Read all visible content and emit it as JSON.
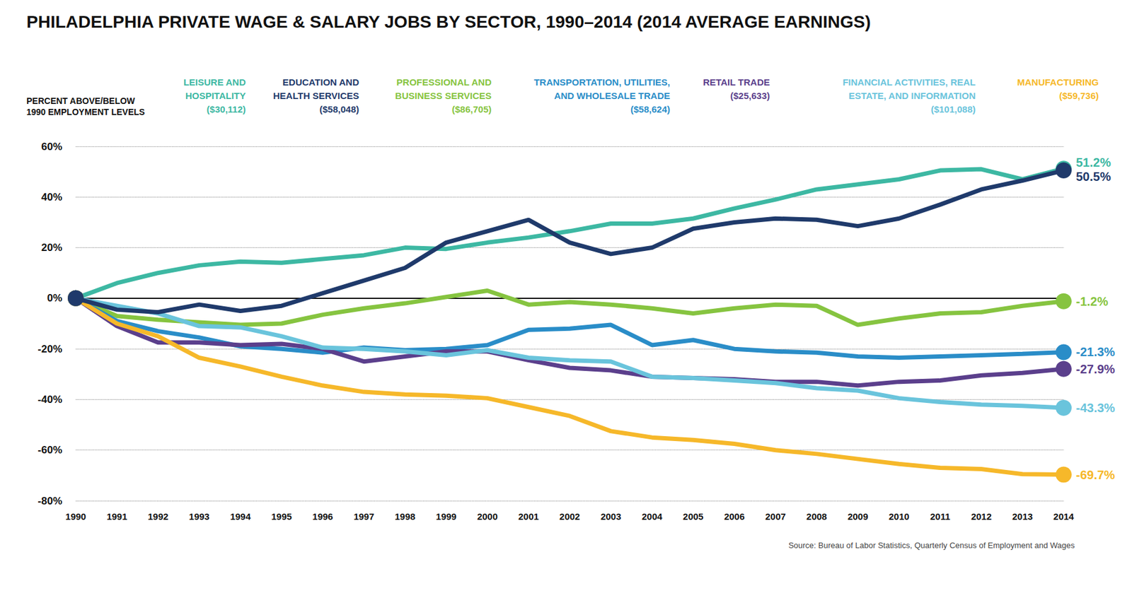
{
  "chart_data": {
    "type": "line",
    "title": "PHILADELPHIA PRIVATE WAGE & SALARY JOBS BY SECTOR, 1990–2014 (2014 AVERAGE EARNINGS)",
    "y_label": "PERCENT ABOVE/BELOW 1990 EMPLOYMENT LEVELS",
    "source": "Source: Bureau of Labor Statistics, Quarterly Census of Employment and Wages",
    "categories": [
      "1990",
      "1991",
      "1992",
      "1993",
      "1994",
      "1995",
      "1996",
      "1997",
      "1998",
      "1999",
      "2000",
      "2001",
      "2002",
      "2003",
      "2004",
      "2005",
      "2006",
      "2007",
      "2008",
      "2009",
      "2010",
      "2011",
      "2012",
      "2013",
      "2014"
    ],
    "ylim": [
      -80,
      60
    ],
    "yticks": [
      {
        "value": -80,
        "label": "-80%"
      },
      {
        "value": -60,
        "label": "-60%"
      },
      {
        "value": -40,
        "label": "-40%"
      },
      {
        "value": -20,
        "label": "-20%"
      },
      {
        "value": 0,
        "label": "0%"
      },
      {
        "value": 20,
        "label": "20%"
      },
      {
        "value": 40,
        "label": "40%"
      },
      {
        "value": 60,
        "label": "60%"
      }
    ],
    "grid": true,
    "marker": "circle",
    "series": [
      {
        "name": "LEISURE AND HOSPITALITY",
        "earnings": "($30,112)",
        "color": "#3db8a3",
        "values": [
          0,
          6,
          10,
          13,
          14.5,
          14,
          15.5,
          17,
          20,
          19.5,
          22,
          24,
          26.5,
          29.5,
          29.5,
          31.5,
          35.5,
          39,
          43,
          45,
          47,
          50.5,
          51,
          47,
          51.2
        ],
        "value_labels": [
          null,
          null,
          null,
          null,
          null,
          null,
          null,
          null,
          null,
          null,
          null,
          null,
          null,
          null,
          null,
          null,
          null,
          null,
          null,
          null,
          null,
          null,
          null,
          null,
          "51.2%"
        ]
      },
      {
        "name": "PROFESSIONAL AND BUSINESS SERVICES",
        "earnings": "($86,705)",
        "color": "#86c440",
        "values": [
          0,
          -7,
          -8.5,
          -9.5,
          -10.5,
          -10,
          -6.5,
          -4,
          -2,
          0.5,
          3,
          -2.5,
          -1.5,
          -2.5,
          -4,
          -6,
          -4,
          -2.5,
          -3,
          -10.5,
          -8,
          -6,
          -5.5,
          -3,
          -1.2
        ],
        "value_labels": [
          null,
          null,
          null,
          null,
          null,
          null,
          null,
          null,
          null,
          null,
          null,
          null,
          null,
          null,
          null,
          null,
          null,
          null,
          null,
          null,
          null,
          null,
          null,
          null,
          "-1.2%"
        ]
      },
      {
        "name": "TRANSPORTATION, UTILITIES, AND WHOLESALE TRADE",
        "earnings": "($58,624)",
        "color": "#2a8dc8",
        "values": [
          0,
          -9,
          -13,
          -15.5,
          -19,
          -20,
          -21.5,
          -19.5,
          -20.5,
          -20,
          -18.5,
          -12.5,
          -12,
          -10.5,
          -18.5,
          -16.5,
          -20,
          -21,
          -21.5,
          -23,
          -23.5,
          -23,
          -22.5,
          -22,
          -21.3
        ],
        "value_labels": [
          null,
          null,
          null,
          null,
          null,
          null,
          null,
          null,
          null,
          null,
          null,
          null,
          null,
          null,
          null,
          null,
          null,
          null,
          null,
          null,
          null,
          null,
          null,
          null,
          "-21.3%"
        ]
      },
      {
        "name": "RETAIL TRADE",
        "earnings": "($25,633)",
        "color": "#5b3f8c",
        "values": [
          0,
          -11,
          -17.5,
          -17.5,
          -18.5,
          -18,
          -20,
          -25,
          -23,
          -21,
          -21,
          -24.5,
          -27.5,
          -28.5,
          -31,
          -31.5,
          -32,
          -33,
          -33,
          -34.5,
          -33,
          -32.5,
          -30.5,
          -29.5,
          -27.9
        ],
        "value_labels": [
          null,
          null,
          null,
          null,
          null,
          null,
          null,
          null,
          null,
          null,
          null,
          null,
          null,
          null,
          null,
          null,
          null,
          null,
          null,
          null,
          null,
          null,
          null,
          null,
          "-27.9%"
        ]
      },
      {
        "name": "FINANCIAL ACTIVITIES, REAL ESTATE, AND INFORMATION",
        "earnings": "($101,088)",
        "color": "#6ac4dc",
        "values": [
          0,
          -3,
          -6,
          -11,
          -11.5,
          -15,
          -19.5,
          -20,
          -21,
          -22.5,
          -20.5,
          -23.5,
          -24.5,
          -25,
          -31,
          -31.5,
          -32.5,
          -33.5,
          -35.5,
          -36.5,
          -39.5,
          -41,
          -42,
          -42.5,
          -43.3
        ],
        "value_labels": [
          null,
          null,
          null,
          null,
          null,
          null,
          null,
          null,
          null,
          null,
          null,
          null,
          null,
          null,
          null,
          null,
          null,
          null,
          null,
          null,
          null,
          null,
          null,
          null,
          "-43.3%"
        ]
      },
      {
        "name": "MANUFACTURING",
        "earnings": "($59,736)",
        "color": "#f6b82a",
        "values": [
          0,
          -10,
          -15,
          -23.5,
          -27,
          -31,
          -34.5,
          -37,
          -38,
          -38.5,
          -39.5,
          -43,
          -46.5,
          -52.5,
          -55,
          -56,
          -57.5,
          -60,
          -61.5,
          -63.5,
          -65.5,
          -67,
          -67.5,
          -69.5,
          -69.7
        ],
        "value_labels": [
          null,
          null,
          null,
          null,
          null,
          null,
          null,
          null,
          null,
          null,
          null,
          null,
          null,
          null,
          null,
          null,
          null,
          null,
          null,
          null,
          null,
          null,
          null,
          null,
          "-69.7%"
        ]
      },
      {
        "name": "EDUCATION AND HEALTH SERVICES",
        "earnings": "($58,048)",
        "color": "#1f3a6b",
        "values": [
          0,
          -4.5,
          -5.5,
          -2.5,
          -5,
          -3,
          2,
          7,
          12,
          22,
          26.5,
          31,
          22,
          17.5,
          20,
          27.5,
          30,
          31.5,
          31,
          28.5,
          31.5,
          37,
          43,
          46.5,
          50.5
        ],
        "value_labels": [
          null,
          null,
          null,
          null,
          null,
          null,
          null,
          null,
          null,
          null,
          null,
          null,
          null,
          null,
          null,
          null,
          null,
          null,
          null,
          null,
          null,
          null,
          null,
          null,
          "50.5%"
        ]
      }
    ]
  }
}
